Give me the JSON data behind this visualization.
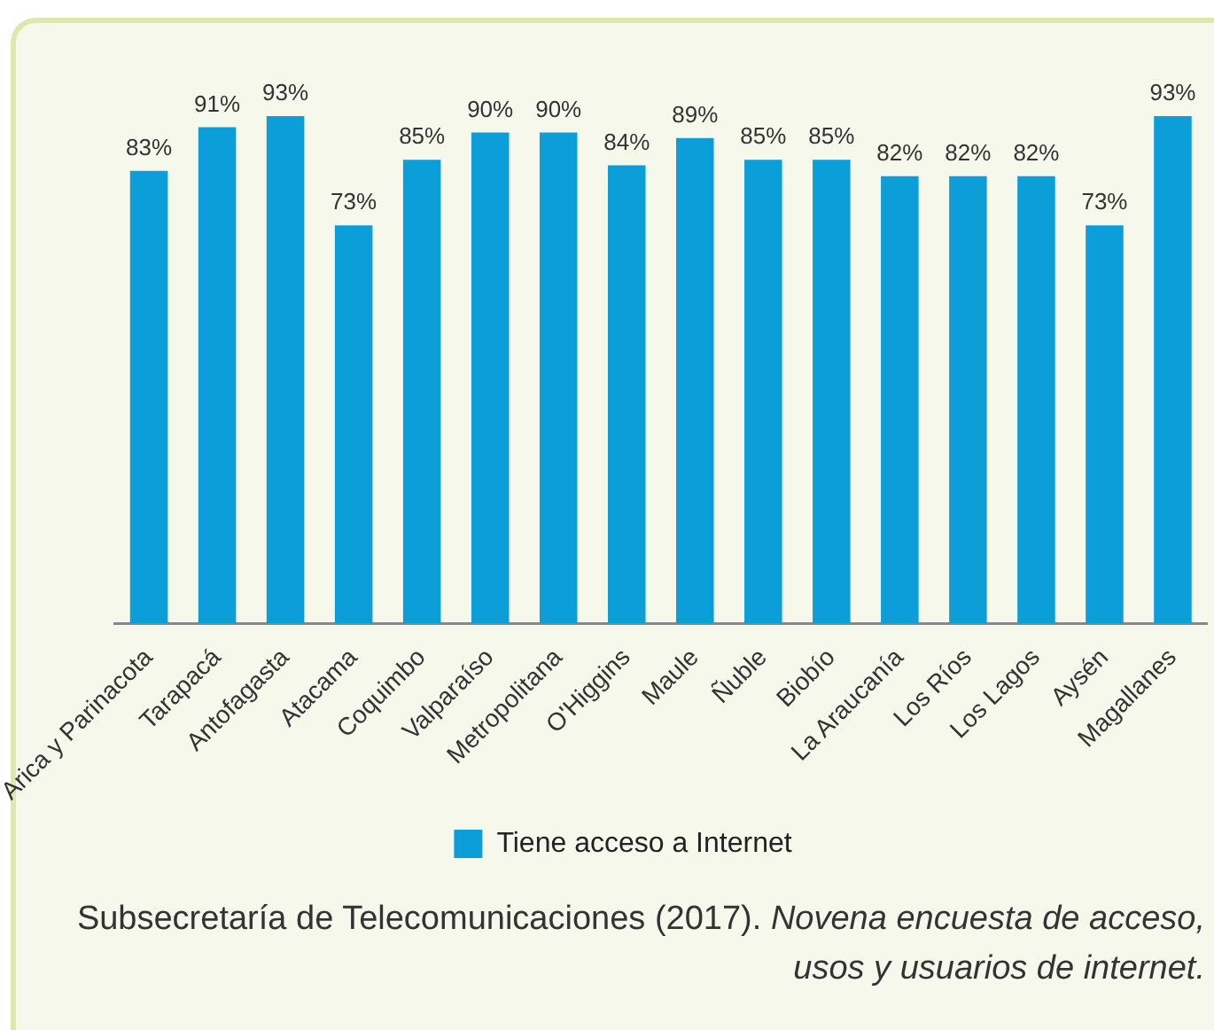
{
  "chart_data": {
    "type": "bar",
    "categories": [
      "Arica y Parinacota",
      "Tarapacá",
      "Antofagasta",
      "Atacama",
      "Coquimbo",
      "Valparaíso",
      "Metropolitana",
      "O'Higgins",
      "Maule",
      "Ñuble",
      "Biobío",
      "La Araucanía",
      "Los Ríos",
      "Los Lagos",
      "Aysén",
      "Magallanes"
    ],
    "series": [
      {
        "name": "Tiene acceso a Internet",
        "color": "#0b9ed9",
        "values": [
          83,
          91,
          93,
          73,
          85,
          90,
          90,
          84,
          89,
          85,
          85,
          82,
          82,
          82,
          73,
          93
        ],
        "value_labels": [
          "83%",
          "91%",
          "93%",
          "73%",
          "85%",
          "90%",
          "90%",
          "84%",
          "89%",
          "85%",
          "85%",
          "82%",
          "82%",
          "82%",
          "73%",
          "93%"
        ]
      }
    ],
    "legend": "bottom",
    "annotations": [
      "Subsecretaría de Telecomunicaciones (2017). Novena encuesta de acceso, usos y usuarios de internet."
    ]
  }
}
